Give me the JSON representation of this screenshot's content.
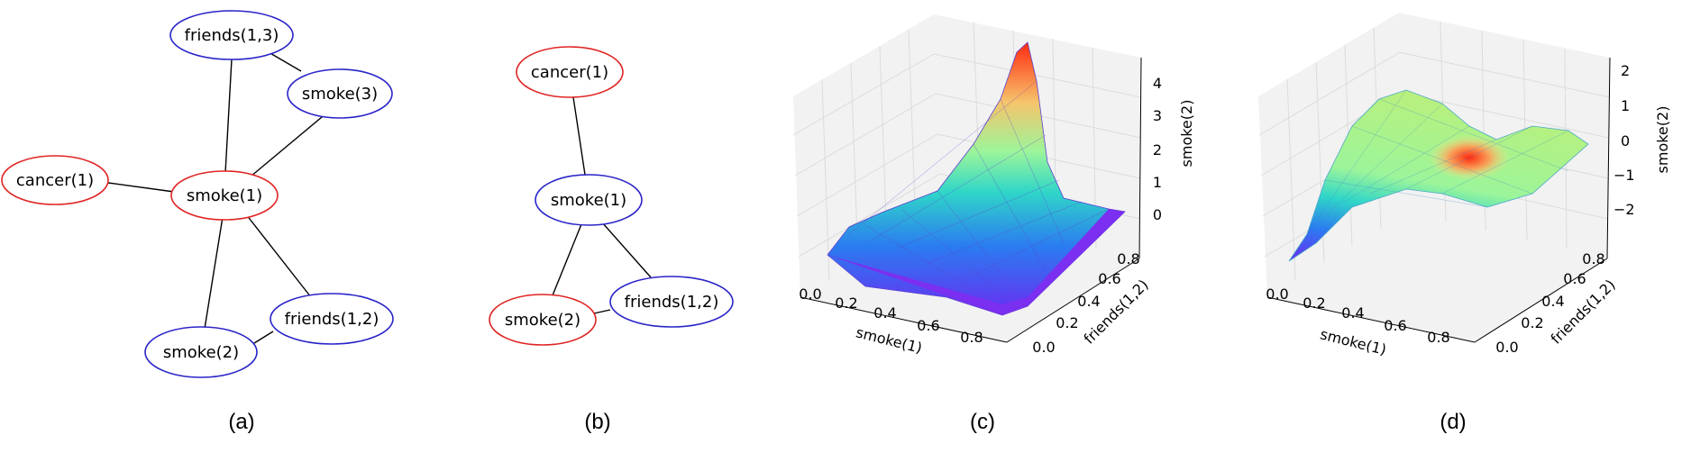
{
  "panels": [
    {
      "caption": "(a)",
      "nodes": [
        {
          "id": "friends13",
          "label": "friends(1,3)",
          "color": "#2a24c8"
        },
        {
          "id": "smoke3",
          "label": "smoke(3)",
          "color": "#2a24c8"
        },
        {
          "id": "cancer1",
          "label": "cancer(1)",
          "color": "#e02424"
        },
        {
          "id": "smoke1",
          "label": "smoke(1)",
          "color": "#e02424"
        },
        {
          "id": "friends12",
          "label": "friends(1,2)",
          "color": "#2a24c8"
        },
        {
          "id": "smoke2",
          "label": "smoke(2)",
          "color": "#2a24c8"
        }
      ]
    },
    {
      "caption": "(b)",
      "nodes": [
        {
          "id": "cancer1",
          "label": "cancer(1)",
          "color": "#e02424"
        },
        {
          "id": "smoke1",
          "label": "smoke(1)",
          "color": "#2a24c8"
        },
        {
          "id": "smoke2",
          "label": "smoke(2)",
          "color": "#e02424"
        },
        {
          "id": "friends12",
          "label": "friends(1,2)",
          "color": "#2a24c8"
        }
      ]
    },
    {
      "caption": "(c)",
      "x_label": "smoke(1)",
      "y_label": "friends(1,2)",
      "z_label": "smoke(2)",
      "x_ticks": [
        "0.0",
        "0.2",
        "0.4",
        "0.6",
        "0.8"
      ],
      "y_ticks": [
        "0.0",
        "0.2",
        "0.4",
        "0.6",
        "0.8"
      ],
      "z_ticks": [
        "0",
        "1",
        "2",
        "3",
        "4"
      ],
      "colormap": "rainbow"
    },
    {
      "caption": "(d)",
      "x_label": "smoke(1)",
      "y_label": "friends(1,2)",
      "z_label": "smoke(2)",
      "x_ticks": [
        "0.0",
        "0.2",
        "0.4",
        "0.6",
        "0.8"
      ],
      "y_ticks": [
        "0.0",
        "0.2",
        "0.4",
        "0.6",
        "0.8"
      ],
      "z_ticks": [
        "2",
        "1",
        "0",
        "−1",
        "−2"
      ],
      "colormap": "rainbow"
    }
  ]
}
